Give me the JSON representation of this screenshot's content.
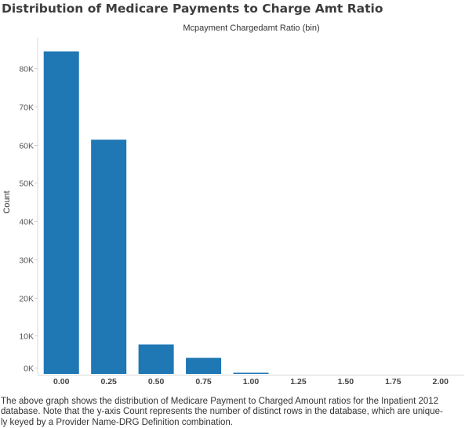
{
  "chart_data": {
    "type": "bar",
    "title": "Distribution of Medicare Payments to Charge Amt Ratio",
    "subtitle": "Mcpayment Chargedamt Ratio (bin)",
    "xlabel": "",
    "ylabel": "Count",
    "categories": [
      "0.00",
      "0.25",
      "0.50",
      "0.75",
      "1.00",
      "1.25",
      "1.50",
      "1.75",
      "2.00"
    ],
    "values": [
      84400,
      61300,
      7700,
      4200,
      200,
      0,
      0,
      0,
      0
    ],
    "ylim": [
      0,
      88000
    ],
    "yticks": [
      0,
      10000,
      20000,
      30000,
      40000,
      50000,
      60000,
      70000,
      80000
    ],
    "ytick_labels": [
      "0K",
      "10K",
      "20K",
      "30K",
      "40K",
      "50K",
      "60K",
      "70K",
      "80K"
    ],
    "bar_color": "#1f77b4",
    "grid": false
  },
  "caption": {
    "line1": "The above graph shows the distribution of Medicare Payment to Charged Amount ratios for the Inpatient 2012",
    "line2": "database. Note that the y-axis Count represents the number of distinct rows in the database, which are unique-",
    "line3": "ly keyed by a Provider Name-DRG Definition combination."
  }
}
